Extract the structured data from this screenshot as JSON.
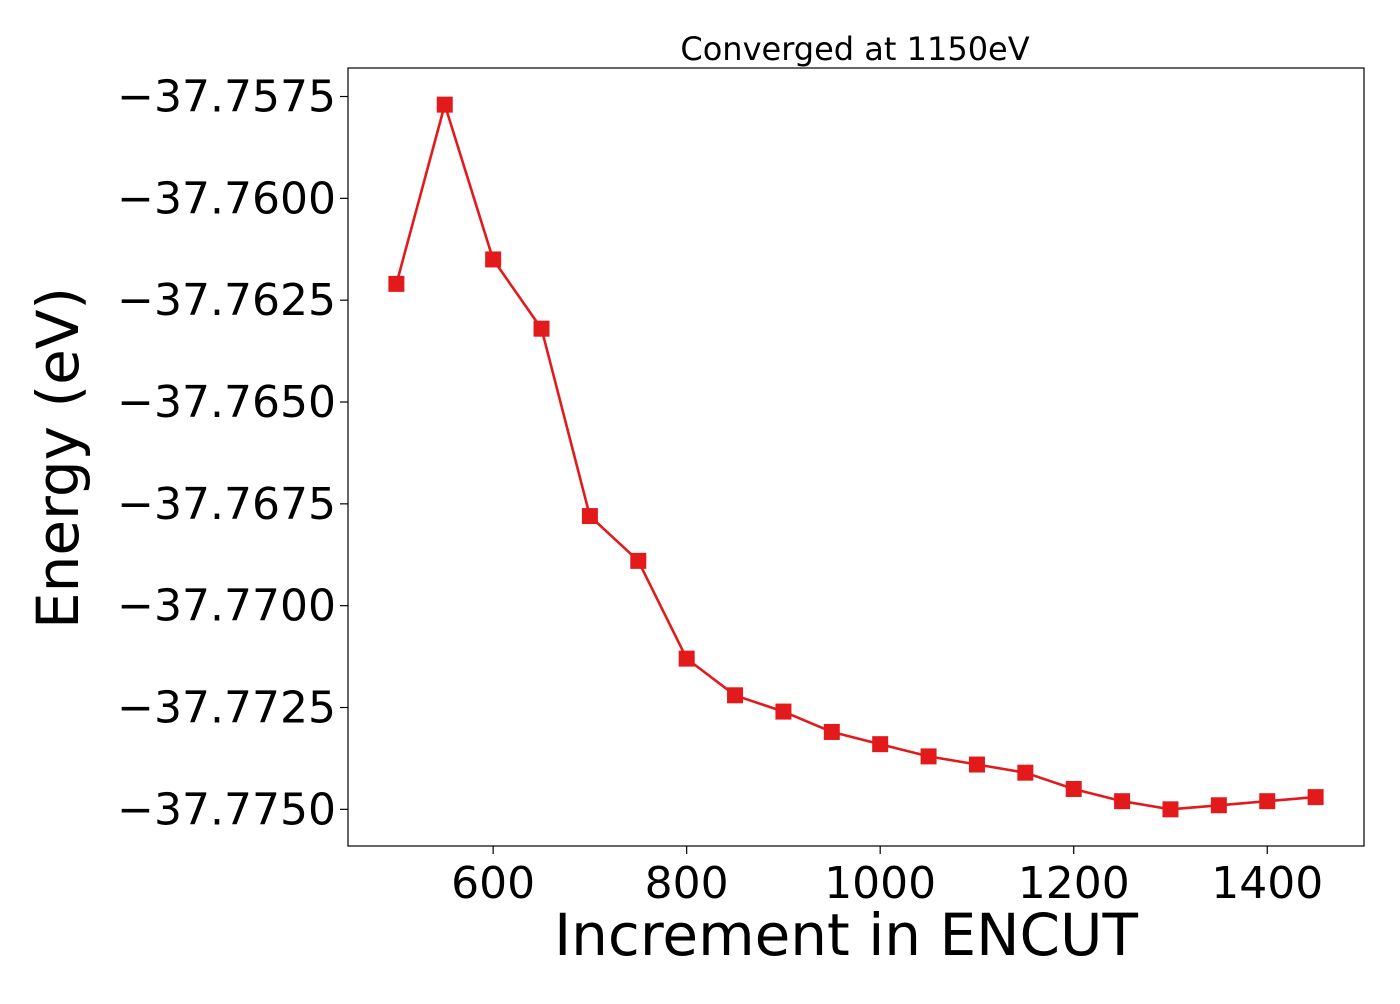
{
  "chart_data": {
    "type": "line",
    "title": "Converged at 1150eV",
    "xlabel": "Increment in ENCUT",
    "ylabel": "Energy (eV)",
    "xlim": [
      450,
      1500
    ],
    "ylim": [
      -37.7759,
      -37.7568
    ],
    "x_ticks": [
      600,
      800,
      1000,
      1200,
      1400
    ],
    "y_ticks": [
      -37.7575,
      -37.76,
      -37.7625,
      -37.765,
      -37.7675,
      -37.77,
      -37.7725,
      -37.775
    ],
    "x_tick_labels": [
      "600",
      "800",
      "1000",
      "1200",
      "1400"
    ],
    "y_tick_labels": [
      "−37.7575",
      "−37.7600",
      "−37.7625",
      "−37.7650",
      "−37.7675",
      "−37.7700",
      "−37.7725",
      "−37.7750"
    ],
    "grid": false,
    "series": [
      {
        "color": "#e31a1c",
        "marker": "square",
        "x": [
          500,
          550,
          600,
          650,
          700,
          750,
          800,
          850,
          900,
          950,
          1000,
          1050,
          1100,
          1150,
          1200,
          1250,
          1300,
          1350,
          1400,
          1450
        ],
        "y": [
          -37.7621,
          -37.7577,
          -37.7615,
          -37.7632,
          -37.7678,
          -37.7689,
          -37.7713,
          -37.7722,
          -37.7726,
          -37.7731,
          -37.7734,
          -37.7737,
          -37.7739,
          -37.7741,
          -37.7745,
          -37.7748,
          -37.775,
          -37.7749,
          -37.7748,
          -37.7747
        ]
      }
    ]
  }
}
